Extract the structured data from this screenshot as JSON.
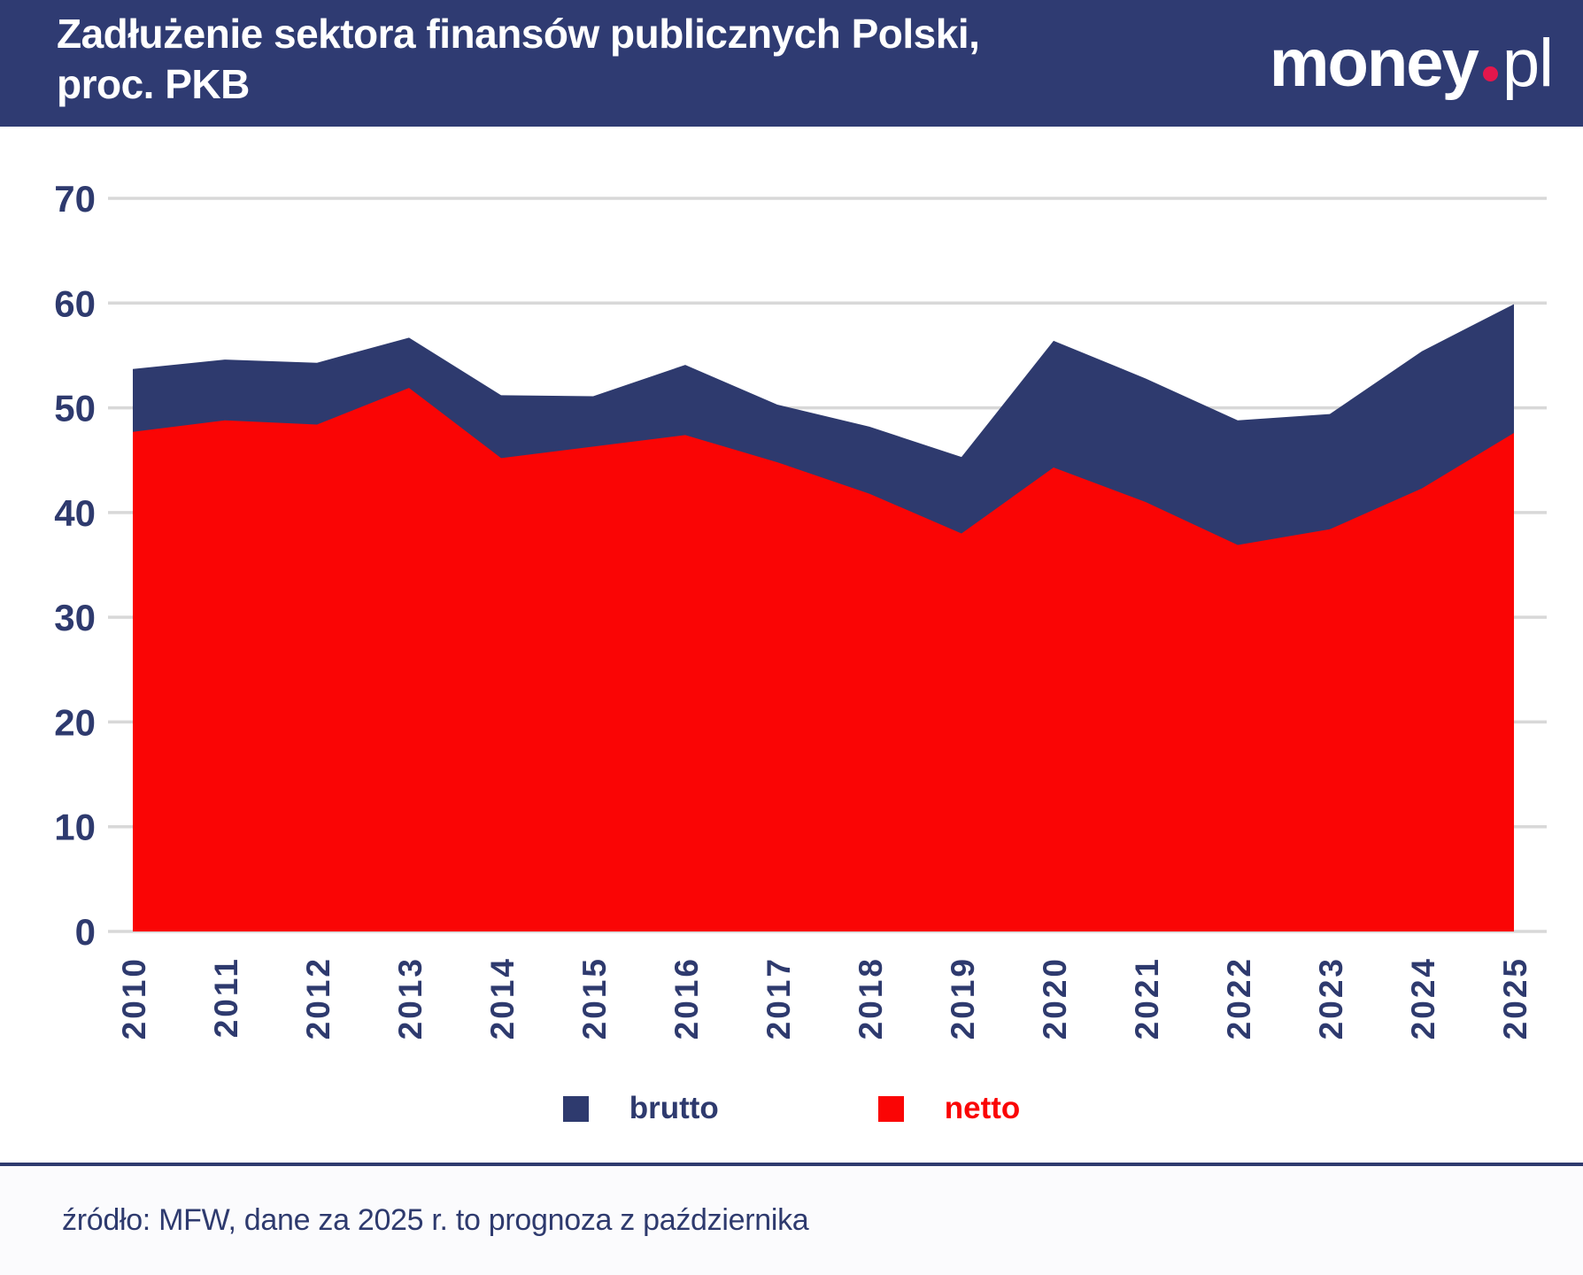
{
  "header": {
    "title_line1": "Zadłużenie sektora finansów publicznych Polski,",
    "title_line2": "proc. PKB",
    "logo": {
      "name": "money",
      "tld": "pl"
    }
  },
  "colors": {
    "header_bg": "#2f3b72",
    "navy": "#2e3a6e",
    "red": "#fa0505",
    "gridline": "#d8d8d8",
    "footer_bg": "#fbfbfd",
    "logo_dot": "#e3174c"
  },
  "chart_data": {
    "type": "area",
    "title": "Zadłużenie sektora finansów publicznych Polski, proc. PKB",
    "categories": [
      "2010",
      "2011",
      "2012",
      "2013",
      "2014",
      "2015",
      "2016",
      "2017",
      "2018",
      "2019",
      "2020",
      "2021",
      "2022",
      "2023",
      "2024",
      "2025"
    ],
    "series": [
      {
        "name": "brutto",
        "color": "#2e3a6e",
        "values": [
          53.7,
          54.6,
          54.3,
          56.7,
          51.2,
          51.1,
          54.1,
          50.3,
          48.2,
          45.3,
          56.4,
          52.8,
          48.8,
          49.4,
          55.4,
          59.9
        ]
      },
      {
        "name": "netto",
        "color": "#fa0505",
        "values": [
          47.7,
          48.8,
          48.4,
          51.9,
          45.2,
          46.3,
          47.4,
          44.8,
          41.8,
          38.0,
          44.3,
          41.0,
          36.9,
          38.4,
          42.3,
          47.6
        ]
      }
    ],
    "xlabel": "",
    "ylabel": "",
    "ylim": [
      0,
      70
    ],
    "yticks": [
      0,
      10,
      20,
      30,
      40,
      50,
      60,
      70
    ],
    "grid": true,
    "legend_position": "bottom"
  },
  "legend": {
    "items": [
      {
        "label": "brutto",
        "color": "#2e3a6e"
      },
      {
        "label": "netto",
        "color": "#fa0505"
      }
    ]
  },
  "footer": {
    "source": "źródło: MFW, dane za 2025 r. to prognoza z października"
  }
}
